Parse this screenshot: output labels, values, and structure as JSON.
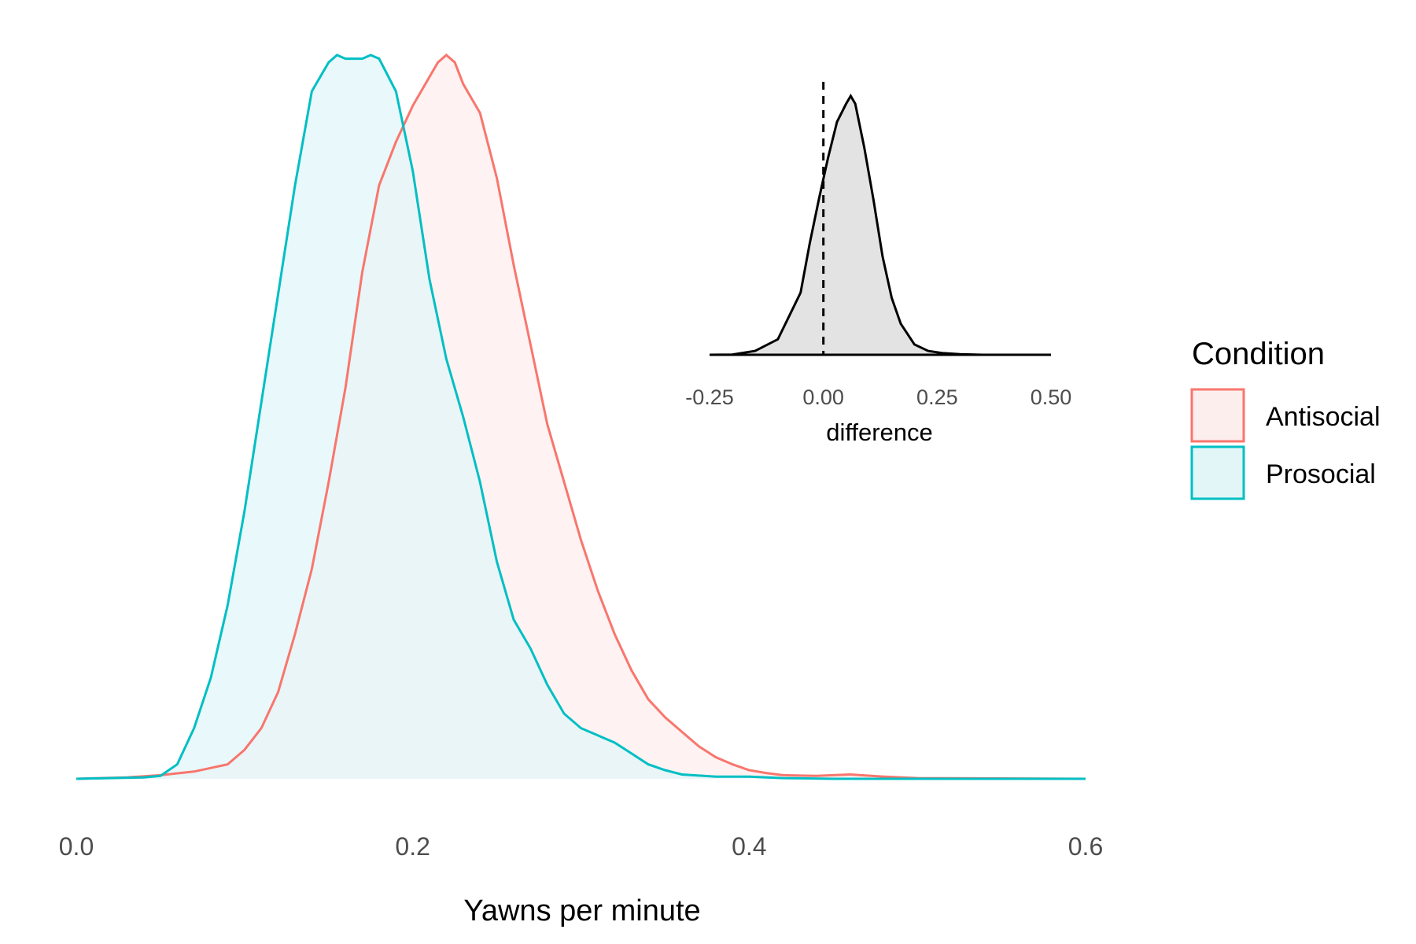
{
  "chart_data": [
    {
      "type": "area",
      "xlabel": "Yawns per minute",
      "ylabel": "",
      "xlim": [
        0.0,
        0.6
      ],
      "ylim": [
        0,
        1
      ],
      "xticks": [
        "0.0",
        "0.2",
        "0.4",
        "0.6"
      ],
      "grid": false,
      "legend": {
        "title": "Condition",
        "position": "right",
        "entries": [
          "Antisocial",
          "Prosocial"
        ]
      },
      "series": [
        {
          "name": "Antisocial",
          "color": "#F8766D",
          "fill": "#FDEEEE",
          "x": [
            0.0,
            0.03,
            0.05,
            0.07,
            0.09,
            0.1,
            0.11,
            0.12,
            0.13,
            0.14,
            0.15,
            0.16,
            0.17,
            0.18,
            0.19,
            0.2,
            0.21,
            0.215,
            0.22,
            0.225,
            0.23,
            0.24,
            0.25,
            0.26,
            0.27,
            0.28,
            0.29,
            0.3,
            0.31,
            0.32,
            0.33,
            0.34,
            0.35,
            0.36,
            0.37,
            0.38,
            0.39,
            0.4,
            0.41,
            0.42,
            0.44,
            0.46,
            0.48,
            0.5,
            0.6
          ],
          "y": [
            0.0,
            0.002,
            0.005,
            0.01,
            0.02,
            0.04,
            0.07,
            0.12,
            0.2,
            0.29,
            0.41,
            0.54,
            0.7,
            0.82,
            0.88,
            0.93,
            0.97,
            0.99,
            1.0,
            0.99,
            0.96,
            0.92,
            0.83,
            0.71,
            0.6,
            0.49,
            0.41,
            0.33,
            0.26,
            0.2,
            0.15,
            0.11,
            0.085,
            0.065,
            0.045,
            0.03,
            0.02,
            0.012,
            0.008,
            0.005,
            0.004,
            0.006,
            0.003,
            0.001,
            0.0
          ]
        },
        {
          "name": "Prosocial",
          "color": "#00BFC4",
          "fill": "#E2F6F8",
          "x": [
            0.0,
            0.02,
            0.04,
            0.05,
            0.06,
            0.07,
            0.08,
            0.09,
            0.1,
            0.11,
            0.12,
            0.13,
            0.14,
            0.15,
            0.155,
            0.16,
            0.17,
            0.175,
            0.18,
            0.19,
            0.2,
            0.21,
            0.22,
            0.23,
            0.24,
            0.25,
            0.26,
            0.27,
            0.28,
            0.29,
            0.3,
            0.31,
            0.32,
            0.33,
            0.34,
            0.35,
            0.36,
            0.38,
            0.4,
            0.42,
            0.45,
            0.5,
            0.6
          ],
          "y": [
            0.0,
            0.001,
            0.002,
            0.004,
            0.02,
            0.07,
            0.14,
            0.24,
            0.37,
            0.52,
            0.67,
            0.82,
            0.95,
            0.99,
            1.0,
            0.995,
            0.995,
            1.0,
            0.995,
            0.95,
            0.84,
            0.69,
            0.58,
            0.5,
            0.41,
            0.3,
            0.22,
            0.18,
            0.13,
            0.09,
            0.07,
            0.06,
            0.05,
            0.035,
            0.02,
            0.012,
            0.006,
            0.003,
            0.003,
            0.001,
            0.0,
            0.0,
            0.0
          ]
        }
      ]
    },
    {
      "type": "area",
      "xlabel": "difference",
      "ylabel": "",
      "xlim": [
        -0.25,
        0.5
      ],
      "ylim": [
        0,
        1
      ],
      "xticks": [
        "-0.25",
        "0.00",
        "0.25",
        "0.50"
      ],
      "grid": false,
      "reference_line": {
        "x": 0.0,
        "style": "dashed"
      },
      "series": [
        {
          "color": "#000000",
          "fill": "#E3E3E3",
          "x": [
            -0.25,
            -0.2,
            -0.15,
            -0.1,
            -0.05,
            -0.03,
            -0.01,
            0.0,
            0.01,
            0.03,
            0.05,
            0.06,
            0.07,
            0.09,
            0.11,
            0.13,
            0.15,
            0.17,
            0.2,
            0.23,
            0.26,
            0.3,
            0.35,
            0.4,
            0.5
          ],
          "y": [
            0.0,
            0.001,
            0.015,
            0.06,
            0.24,
            0.43,
            0.6,
            0.68,
            0.76,
            0.9,
            0.97,
            1.0,
            0.97,
            0.8,
            0.6,
            0.38,
            0.22,
            0.12,
            0.04,
            0.015,
            0.007,
            0.002,
            0.0,
            0.0,
            0.0
          ]
        }
      ]
    }
  ]
}
